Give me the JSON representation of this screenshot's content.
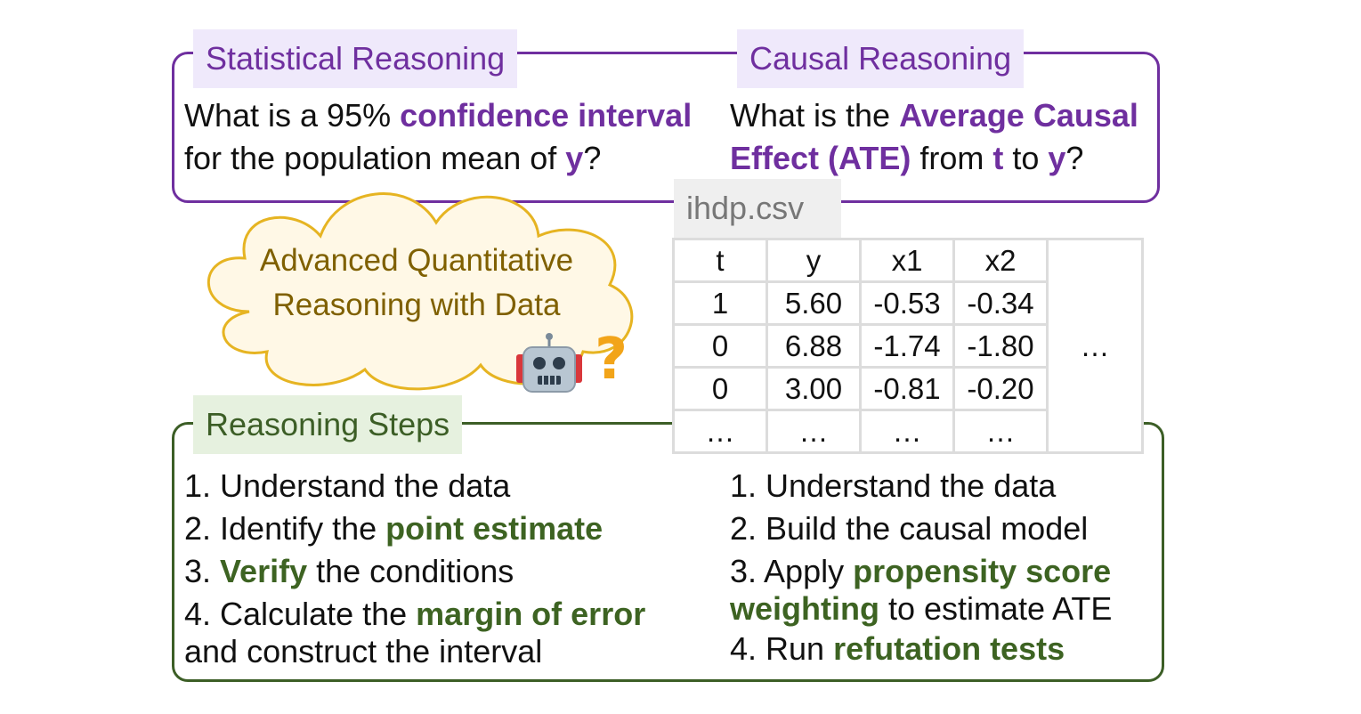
{
  "statistical": {
    "label": "Statistical Reasoning",
    "line1_a": "What is a 95% ",
    "line1_b": "confidence interval",
    "line2_a": "for the population mean of ",
    "line2_b": "y",
    "line2_c": "?"
  },
  "causal": {
    "label": "Causal Reasoning",
    "line1_a": "What is the ",
    "line1_b": "Average Causal",
    "line2_a": "Effect (ATE)",
    "line2_b": " from ",
    "line2_c": "t",
    "line2_d": " to ",
    "line2_e": "y",
    "line2_f": "?"
  },
  "cloud": {
    "line1": "Advanced Quantitative",
    "line2": "Reasoning with Data"
  },
  "dataset": {
    "filename": "ihdp.csv",
    "headers": [
      "t",
      "y",
      "x1",
      "x2"
    ],
    "rows": [
      [
        "1",
        "5.60",
        "-0.53",
        "-0.34"
      ],
      [
        "0",
        "6.88",
        "-1.74",
        "-1.80"
      ],
      [
        "0",
        "3.00",
        "-0.81",
        "-0.20"
      ],
      [
        "…",
        "…",
        "…",
        "…"
      ]
    ],
    "more_columns": "…"
  },
  "steps": {
    "label": "Reasoning Steps",
    "left": {
      "s1": "1. Understand the data",
      "s2_a": "2. Identify the ",
      "s2_b": "point estimate",
      "s3_a": "3. ",
      "s3_b": "Verify",
      "s3_c": " the conditions",
      "s4_a": "4. Calculate the ",
      "s4_b": "margin of error",
      "s4_c": "and construct the interval"
    },
    "right": {
      "s1": "1. Understand the data",
      "s2": "2. Build the causal model",
      "s3_a": "3. Apply ",
      "s3_b": "propensity score",
      "s3_c": "weighting",
      "s3_d": " to estimate ATE",
      "s4_a": "4. Run ",
      "s4_b": "refutation tests"
    }
  },
  "icons": [
    "robot-icon",
    "question-mark-icon"
  ],
  "colors": {
    "purple": "#6f2f9f",
    "green": "#3c5e26",
    "cloud_border": "#e6b422",
    "cloud_text": "#7f6000"
  }
}
